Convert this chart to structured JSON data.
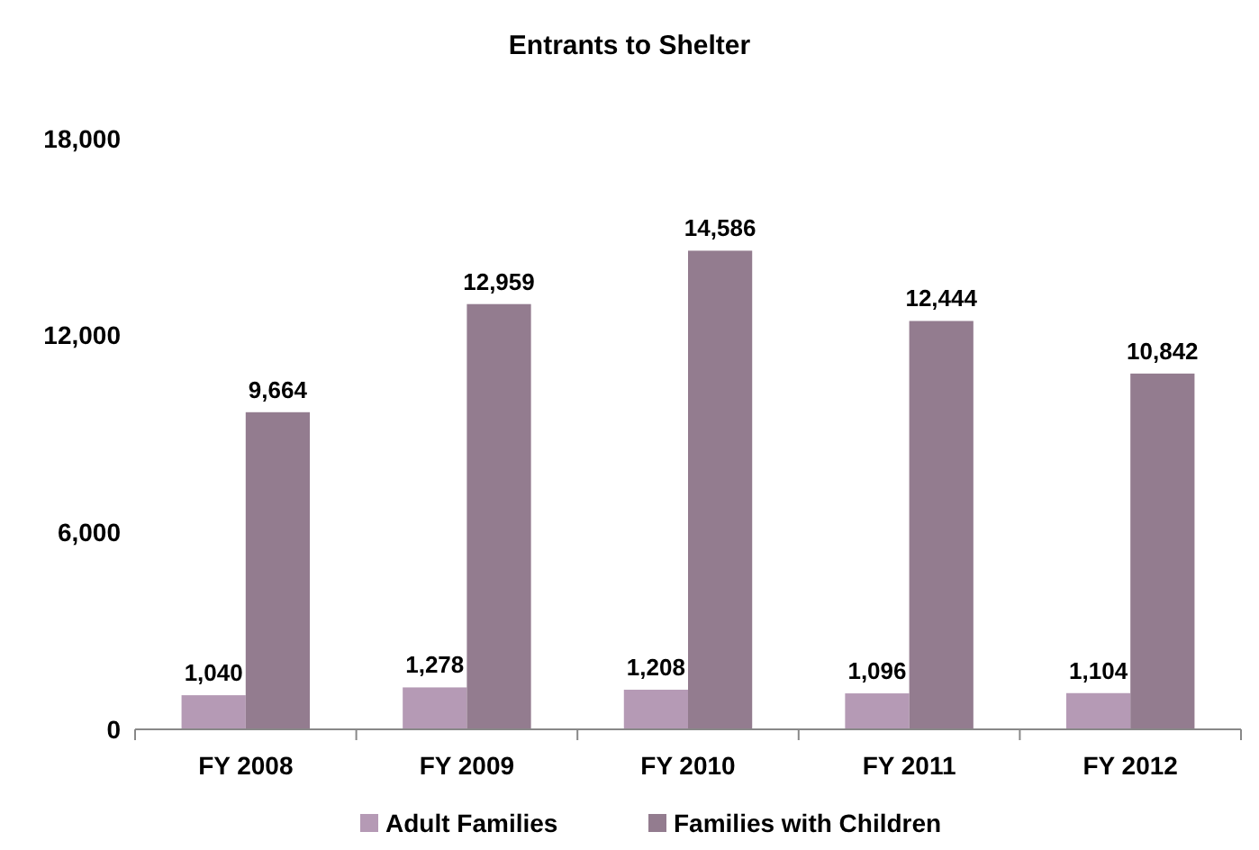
{
  "chart_data": {
    "type": "bar",
    "title": "Entrants to Shelter",
    "categories": [
      "FY 2008",
      "FY 2009",
      "FY 2010",
      "FY 2011",
      "FY 2012"
    ],
    "series": [
      {
        "name": "Adult Families",
        "color": "#b59ab5",
        "values": [
          1040,
          1278,
          1208,
          1096,
          1104
        ],
        "value_labels": [
          "1,040",
          "1,278",
          "1,208",
          "1,096",
          "1,104"
        ]
      },
      {
        "name": "Families with Children",
        "color": "#937c8f",
        "values": [
          9664,
          12959,
          14586,
          12444,
          10842
        ],
        "value_labels": [
          "9,664",
          "12,959",
          "14,586",
          "12,444",
          "10,842"
        ]
      }
    ],
    "ylim": [
      0,
      18000
    ],
    "yticks": [
      {
        "value": 0,
        "label": "0"
      },
      {
        "value": 6000,
        "label": "6,000"
      },
      {
        "value": 12000,
        "label": "12,000"
      },
      {
        "value": 18000,
        "label": "18,000"
      }
    ],
    "legend": "bottom",
    "grid": false
  }
}
